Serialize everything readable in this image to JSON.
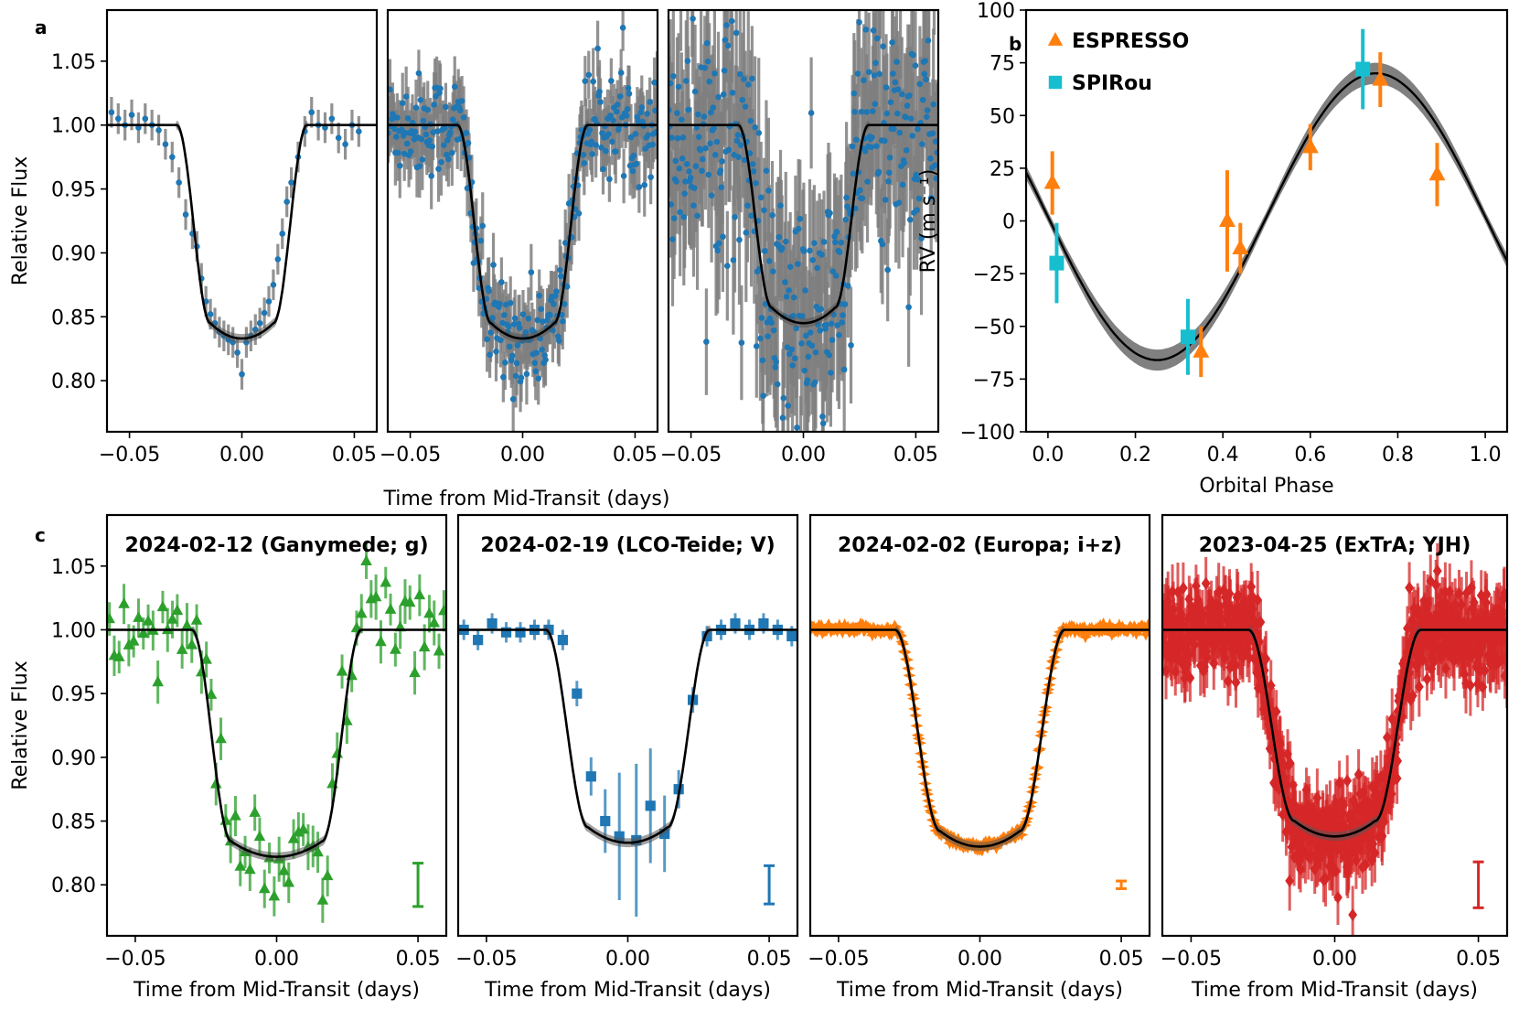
{
  "figure": {
    "panel_labels": {
      "a": "a",
      "b": "b",
      "c": "c"
    },
    "shared_xlabel_top": "Time from Mid-Transit (days)",
    "xlabel_bottom": "Time from Mid-Transit (days)"
  },
  "colors": {
    "green": "#2ca02c",
    "blue": "#1f77b4",
    "orange": "#ff7f0e",
    "red": "#d62728",
    "teal": "#17becf",
    "errgray": "#7f7f7f",
    "model": "#000000"
  },
  "chart_data": [
    {
      "id": "a1",
      "type": "scatter",
      "panel": "a",
      "title": "",
      "xlabel": "",
      "ylabel": "Relative Flux",
      "xlim": [
        -0.06,
        0.06
      ],
      "ylim": [
        0.76,
        1.09
      ],
      "xticks": [
        -0.05,
        0.0,
        0.05
      ],
      "xticklabels": [
        "−0.05",
        "0.00",
        "0.05"
      ],
      "yticks": [
        0.8,
        0.85,
        0.9,
        0.95,
        1.0,
        1.05
      ],
      "yticklabels": [
        "0.80",
        "0.85",
        "0.90",
        "0.95",
        "1.00",
        "1.05"
      ],
      "model": {
        "depth": 0.167,
        "t_full": 0.014,
        "t_total": 0.029
      },
      "marker": "circle",
      "point_color": "blue",
      "err_color": "errgray",
      "series": [
        {
          "name": "data",
          "x": [
            -0.058,
            -0.055,
            -0.052,
            -0.049,
            -0.046,
            -0.043,
            -0.04,
            -0.037,
            -0.034,
            -0.031,
            -0.028,
            -0.025,
            -0.022,
            -0.02,
            -0.018,
            -0.016,
            -0.014,
            -0.012,
            -0.01,
            -0.008,
            -0.006,
            -0.004,
            -0.002,
            0.0,
            0.002,
            0.004,
            0.006,
            0.008,
            0.01,
            0.012,
            0.014,
            0.016,
            0.018,
            0.02,
            0.022,
            0.025,
            0.028,
            0.031,
            0.034,
            0.037,
            0.04,
            0.043,
            0.046,
            0.049,
            0.052
          ],
          "y": [
            1.01,
            1.005,
            1.0,
            1.008,
            0.998,
            1.005,
            1.0,
            0.996,
            0.985,
            0.975,
            0.955,
            0.93,
            0.915,
            0.905,
            0.88,
            0.862,
            0.852,
            0.845,
            0.838,
            0.835,
            0.832,
            0.83,
            0.822,
            0.805,
            0.83,
            0.835,
            0.84,
            0.845,
            0.853,
            0.862,
            0.875,
            0.895,
            0.915,
            0.94,
            0.955,
            0.975,
            0.995,
            1.01,
            1.0,
            0.998,
            1.005,
            0.99,
            0.985,
            1.0,
            0.995
          ],
          "err": 0.012
        }
      ]
    },
    {
      "id": "a2",
      "type": "scatter",
      "panel": "a",
      "title": "",
      "xlabel": "",
      "ylabel": "",
      "xlim": [
        -0.06,
        0.06
      ],
      "ylim": [
        0.76,
        1.09
      ],
      "xticks": [
        -0.05,
        0.0,
        0.05
      ],
      "xticklabels": [
        "−0.05",
        "0.00",
        "0.05"
      ],
      "yticks": [],
      "yticklabels": [],
      "model": {
        "depth": 0.167,
        "t_full": 0.014,
        "t_total": 0.029
      },
      "marker": "circle",
      "point_color": "blue",
      "err_color": "errgray",
      "series": [
        {
          "name": "data",
          "n": 300,
          "noise": 0.02,
          "err": 0.022
        }
      ]
    },
    {
      "id": "a3",
      "type": "scatter",
      "panel": "a",
      "title": "",
      "xlabel": "",
      "ylabel": "",
      "xlim": [
        -0.06,
        0.06
      ],
      "ylim": [
        0.76,
        1.09
      ],
      "xticks": [
        -0.05,
        0.0,
        0.05
      ],
      "xticklabels": [
        "−0.05",
        "0.00",
        "0.05"
      ],
      "yticks": [],
      "yticklabels": [],
      "model": {
        "depth": 0.155,
        "t_full": 0.014,
        "t_total": 0.029
      },
      "marker": "circle",
      "point_color": "blue",
      "err_color": "errgray",
      "series": [
        {
          "name": "data",
          "n": 360,
          "noise": 0.05,
          "err": 0.05
        }
      ]
    },
    {
      "id": "b",
      "type": "scatter",
      "panel": "b",
      "title": "",
      "xlabel": "Orbital Phase",
      "ylabel": "RV (m s⁻¹)",
      "xlim": [
        -0.05,
        1.05
      ],
      "ylim": [
        -100,
        100
      ],
      "xticks": [
        0.0,
        0.2,
        0.4,
        0.6,
        0.8,
        1.0
      ],
      "xticklabels": [
        "0.0",
        "0.2",
        "0.4",
        "0.6",
        "0.8",
        "1.0"
      ],
      "yticks": [
        -100,
        -75,
        -50,
        -25,
        0,
        25,
        50,
        75,
        100
      ],
      "yticklabels": [
        "−100",
        "−75",
        "−50",
        "−25",
        "0",
        "25",
        "50",
        "75",
        "100"
      ],
      "model": {
        "K": 68,
        "offset": 2,
        "band": 5,
        "phase0": 0.5
      },
      "legend": [
        {
          "label": "ESPRESSO",
          "color": "orange",
          "marker": "triangle"
        },
        {
          "label": "SPIRou",
          "color": "teal",
          "marker": "square"
        }
      ],
      "legend_position": "top-left",
      "series": [
        {
          "name": "ESPRESSO",
          "color": "orange",
          "marker": "triangle",
          "x": [
            0.01,
            0.41,
            0.44,
            0.35,
            0.6,
            0.76,
            0.89
          ],
          "y": [
            18,
            0,
            -13,
            -62,
            35,
            67,
            22
          ],
          "err": [
            15,
            24,
            12,
            12,
            11,
            13,
            15
          ]
        },
        {
          "name": "SPIRou",
          "color": "teal",
          "marker": "square",
          "x": [
            0.02,
            0.32,
            0.72
          ],
          "y": [
            -20,
            -55,
            72
          ],
          "err": [
            19,
            18,
            19
          ]
        }
      ]
    },
    {
      "id": "c1",
      "type": "scatter",
      "panel": "c",
      "title": "2024-02-12  (Ganymede; g)",
      "xlabel": "Time from Mid-Transit (days)",
      "ylabel": "Relative Flux",
      "xlim": [
        -0.06,
        0.06
      ],
      "ylim": [
        0.76,
        1.09
      ],
      "xticks": [
        -0.05,
        0.0,
        0.05
      ],
      "xticklabels": [
        "−0.05",
        "0.00",
        "0.05"
      ],
      "yticks": [
        0.8,
        0.85,
        0.9,
        0.95,
        1.0,
        1.05
      ],
      "yticklabels": [
        "0.80",
        "0.85",
        "0.90",
        "0.95",
        "1.00",
        "1.05"
      ],
      "model": {
        "depth": 0.178,
        "t_full": 0.016,
        "t_total": 0.03
      },
      "marker": "triangle",
      "point_color": "green",
      "err_color": "green",
      "series": [
        {
          "name": "data",
          "n": 70,
          "noise": 0.02,
          "err": 0.015
        }
      ],
      "typical_error": 0.017
    },
    {
      "id": "c2",
      "type": "scatter",
      "panel": "c",
      "title": "2024-02-19  (LCO-Teide; V)",
      "xlabel": "Time from Mid-Transit (days)",
      "ylabel": "",
      "xlim": [
        -0.06,
        0.06
      ],
      "ylim": [
        0.76,
        1.09
      ],
      "xticks": [
        -0.05,
        0.0,
        0.05
      ],
      "xticklabels": [
        "−0.05",
        "0.00",
        "0.05"
      ],
      "yticks": [],
      "yticklabels": [],
      "model": {
        "depth": 0.167,
        "t_full": 0.014,
        "t_total": 0.029
      },
      "marker": "square",
      "point_color": "blue",
      "err_color": "blue",
      "series": [
        {
          "name": "data",
          "x": [
            -0.058,
            -0.053,
            -0.048,
            -0.043,
            -0.038,
            -0.033,
            -0.028,
            -0.023,
            -0.018,
            -0.013,
            -0.008,
            -0.003,
            0.003,
            0.008,
            0.013,
            0.018,
            0.023,
            0.028,
            0.033,
            0.038,
            0.043,
            0.048,
            0.053,
            0.058
          ],
          "y": [
            1.0,
            0.992,
            1.005,
            0.998,
            0.998,
            1.0,
            1.0,
            0.992,
            0.95,
            0.885,
            0.85,
            0.838,
            0.835,
            0.862,
            0.84,
            0.875,
            0.945,
            0.995,
            1.0,
            1.005,
            1.0,
            1.005,
            1.0,
            0.995
          ],
          "err": [
            0.008,
            0.008,
            0.008,
            0.008,
            0.008,
            0.008,
            0.008,
            0.008,
            0.01,
            0.015,
            0.025,
            0.05,
            0.06,
            0.045,
            0.03,
            0.015,
            0.01,
            0.008,
            0.008,
            0.008,
            0.008,
            0.008,
            0.008,
            0.008
          ]
        }
      ],
      "typical_error": 0.015
    },
    {
      "id": "c3",
      "type": "scatter",
      "panel": "c",
      "title": "2024-02-02  (Europa; i+z)",
      "xlabel": "Time from Mid-Transit (days)",
      "ylabel": "",
      "xlim": [
        -0.06,
        0.06
      ],
      "ylim": [
        0.76,
        1.09
      ],
      "xticks": [
        -0.05,
        0.0,
        0.05
      ],
      "xticklabels": [
        "−0.05",
        "0.00",
        "0.05"
      ],
      "yticks": [],
      "yticklabels": [],
      "model": {
        "depth": 0.17,
        "t_full": 0.014,
        "t_total": 0.03
      },
      "marker": "star",
      "point_color": "orange",
      "err_color": "orange",
      "series": [
        {
          "name": "data",
          "n": 320,
          "noise": 0.002,
          "err": 0.003
        }
      ],
      "typical_error": 0.003
    },
    {
      "id": "c4",
      "type": "scatter",
      "panel": "c",
      "title": "2023-04-25  (ExTrA; YJH)",
      "xlabel": "Time from Mid-Transit (days)",
      "ylabel": "",
      "xlim": [
        -0.06,
        0.06
      ],
      "ylim": [
        0.76,
        1.09
      ],
      "xticks": [
        -0.05,
        0.0,
        0.05
      ],
      "xticklabels": [
        "−0.05",
        "0.00",
        "0.05"
      ],
      "yticks": [],
      "yticklabels": [],
      "model": {
        "depth": 0.162,
        "t_full": 0.014,
        "t_total": 0.03
      },
      "marker": "diamond",
      "point_color": "red",
      "err_color": "red",
      "series": [
        {
          "name": "data",
          "n": 700,
          "noise": 0.017,
          "err": 0.02
        }
      ],
      "typical_error": 0.018
    }
  ]
}
